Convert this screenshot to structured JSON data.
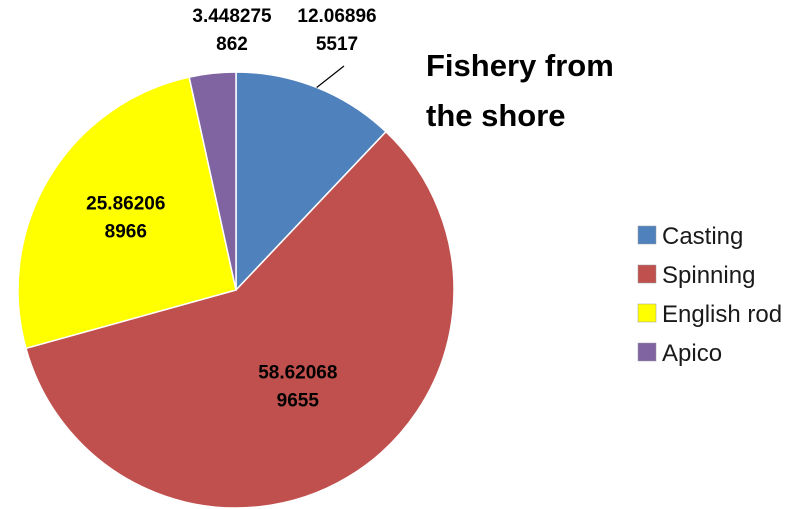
{
  "chart_data": {
    "type": "pie",
    "title": "Fishery from the shore",
    "slices": [
      {
        "name": "Casting",
        "value": 12.068965517,
        "label_lines": [
          "12.06896",
          "5517"
        ],
        "color": "#4F81BD"
      },
      {
        "name": "Spinning",
        "value": 58.620689655,
        "label_lines": [
          "58.62068",
          "9655"
        ],
        "color": "#C0504D"
      },
      {
        "name": "English rod",
        "value": 25.862068966,
        "label_lines": [
          "25.86206",
          "8966"
        ],
        "color": "#FFFF00"
      },
      {
        "name": "Apico",
        "value": 3.448275862,
        "label_lines": [
          "3.448275",
          "862"
        ],
        "color": "#8064A2"
      }
    ],
    "start_angle_deg": 0,
    "direction": "clockwise",
    "legend_position": "right",
    "border_color": "#FFFFFF"
  }
}
